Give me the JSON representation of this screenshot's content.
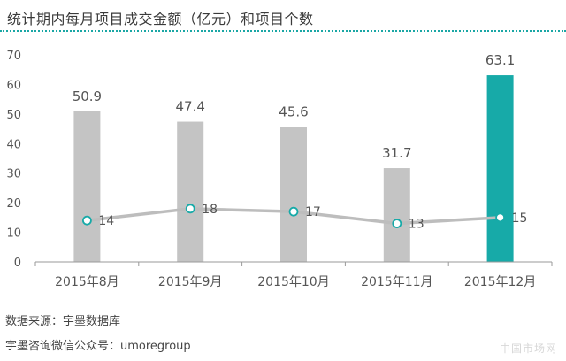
{
  "title": "统计期内每月项目成交金额（亿元）和项目个数",
  "footer": {
    "source": "数据来源：宇墨数据库",
    "wechat": "宇墨咨询微信公众号：umoregroup"
  },
  "colors": {
    "bar": "#c4c4c4",
    "bar_highlight": "#17aaa8",
    "line": "#bdbdbd",
    "marker_stroke": "#17aaa8",
    "axis": "#9a9a9a",
    "text": "#555555"
  },
  "chart_data": {
    "type": "bar",
    "categories": [
      "2015年8月",
      "2015年9月",
      "2015年10月",
      "2015年11月",
      "2015年12月"
    ],
    "ylim": [
      0,
      70
    ],
    "yticks": [
      0,
      10,
      20,
      30,
      40,
      50,
      60,
      70
    ],
    "series": [
      {
        "type": "bar",
        "values": [
          50.9,
          47.4,
          45.6,
          31.7,
          63.1
        ],
        "highlight_index": 4
      },
      {
        "type": "line",
        "values": [
          14,
          18,
          17,
          13,
          15
        ]
      }
    ],
    "grid": false
  }
}
